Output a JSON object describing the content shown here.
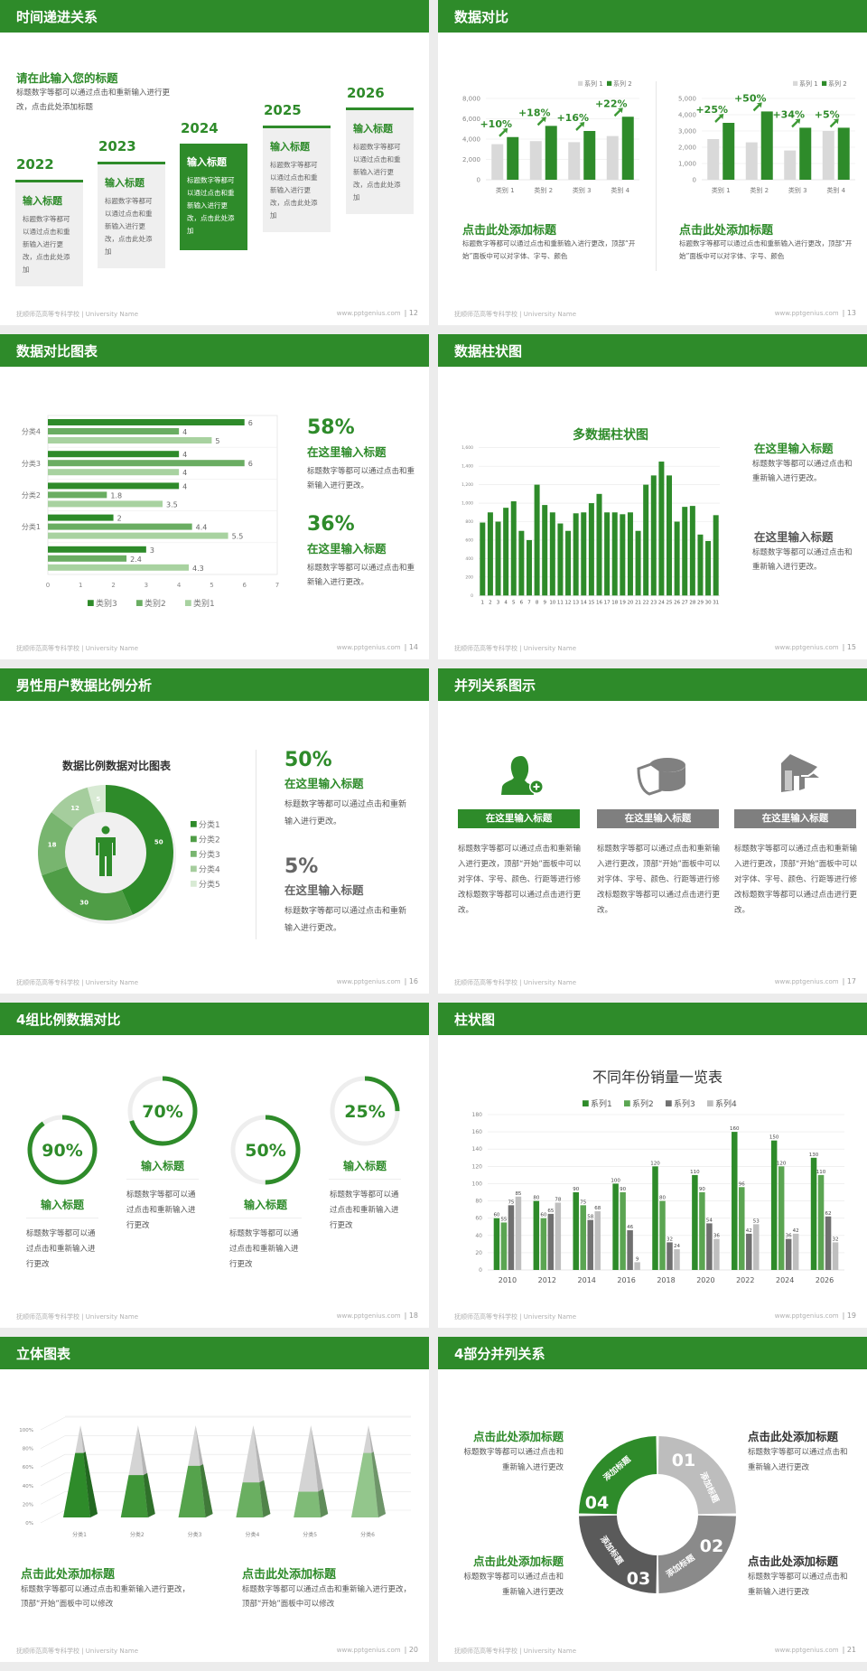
{
  "theme": {
    "accent": "#2e8b2a",
    "background": "#ececec"
  },
  "footer": {
    "school": "抚顺师范高等专科学校 | University Name",
    "site": "www.pptgenius.com"
  },
  "slides": [
    {
      "title": "时间递进关系",
      "page": "12",
      "subtitle": "请在此输入您的标题",
      "desc": "标题数字等都可以通过点击和重新输入进行更改，点击此处添加标题",
      "highlighted": "2024",
      "steps": [
        {
          "year": "2022",
          "title": "输入标题",
          "text": "标题数字等都可以通过点击和重新输入进行更改，点击此处添加"
        },
        {
          "year": "2023",
          "title": "输入标题",
          "text": "标题数字等都可以通过点击和重新输入进行更改，点击此处添加"
        },
        {
          "year": "2024",
          "title": "输入标题",
          "text": "标题数字等都可以通过点击和重新输入进行更改，点击此处添加"
        },
        {
          "year": "2025",
          "title": "输入标题",
          "text": "标题数字等都可以通过点击和重新输入进行更改，点击此处添加"
        },
        {
          "year": "2026",
          "title": "输入标题",
          "text": "标题数字等都可以通过点击和重新输入进行更改，点击此处添加"
        }
      ]
    },
    {
      "title": "数据对比",
      "page": "13",
      "blocks": [
        {
          "title": "点击此处添加标题",
          "text": "标题数字等都可以通过点击和重新输入进行更改，顶部“开始”面板中可以对字体、字号、颜色"
        },
        {
          "title": "点击此处添加标题",
          "text": "标题数字等都可以通过点击和重新输入进行更改，顶部“开始”面板中可以对字体、字号、颜色"
        }
      ]
    },
    {
      "title": "数据对比图表",
      "page": "14",
      "stats": [
        {
          "value": "58%",
          "title": "在这里输入标题",
          "text": "标题数字等都可以通过点击和重新输入进行更改。"
        },
        {
          "value": "36%",
          "title": "在这里输入标题",
          "text": "标题数字等都可以通过点击和重新输入进行更改。"
        }
      ]
    },
    {
      "title": "数据柱状图",
      "page": "15",
      "items": [
        {
          "title": "在这里输入标题",
          "text": "标题数字等都可以通过点击和重新输入进行更改。",
          "color": "#2e8b2a"
        },
        {
          "title": "在这里输入标题",
          "text": "标题数字等都可以通过点击和重新输入进行更改。",
          "color": "#555555"
        }
      ]
    },
    {
      "title": "男性用户数据比例分析",
      "page": "16",
      "stats": [
        {
          "value": "50%",
          "title": "在这里输入标题",
          "text": "标题数字等都可以通过点击和重新输入进行更改。",
          "color": "#2e8b2a"
        },
        {
          "value": "5%",
          "title": "在这里输入标题",
          "text": "标题数字等都可以通过点击和重新输入进行更改。",
          "color": "#666666"
        }
      ]
    },
    {
      "title": "并列关系图示",
      "page": "17",
      "columns": [
        {
          "icon": "female-user-add-icon",
          "label": "在这里输入标题",
          "color": "#2e8b2a",
          "text": "标题数字等都可以通过点击和重新输入进行更改，顶部“开始”面板中可以对字体、字号、颜色、行距等进行修改标题数字等都可以通过点击进行更改。"
        },
        {
          "icon": "pie-chart-icon",
          "label": "在这里输入标题",
          "color": "#7f7f7f",
          "text": "标题数字等都可以通过点击和重新输入进行更改，顶部“开始”面板中可以对字体、字号、颜色、行距等进行修改标题数字等都可以通过点击进行更改。"
        },
        {
          "icon": "store-icon",
          "label": "在这里输入标题",
          "color": "#7f7f7f",
          "text": "标题数字等都可以通过点击和重新输入进行更改，顶部“开始”面板中可以对字体、字号、颜色、行距等进行修改标题数字等都可以通过点击进行更改。"
        }
      ]
    },
    {
      "title": "4组比例数据对比",
      "page": "18",
      "rings": [
        {
          "percent": 90,
          "label": "90%",
          "title": "输入标题",
          "text": "标题数字等都可以通过点击和重新输入进行更改"
        },
        {
          "percent": 70,
          "label": "70%",
          "title": "输入标题",
          "text": "标题数字等都可以通过点击和重新输入进行更改"
        },
        {
          "percent": 50,
          "label": "50%",
          "title": "输入标题",
          "text": "标题数字等都可以通过点击和重新输入进行更改"
        },
        {
          "percent": 25,
          "label": "25%",
          "title": "输入标题",
          "text": "标题数字等都可以通过点击和重新输入进行更改"
        }
      ]
    },
    {
      "title": "柱状图",
      "page": "19"
    },
    {
      "title": "立体图表",
      "page": "20",
      "blocks": [
        {
          "title": "点击此处添加标题",
          "text": "标题数字等都可以通过点击和重新输入进行更改，顶部“开始”面板中可以修改"
        },
        {
          "title": "点击此处添加标题",
          "text": "标题数字等都可以通过点击和重新输入进行更改，顶部“开始”面板中可以修改"
        }
      ]
    },
    {
      "title": "4部分并列关系",
      "page": "21",
      "segments": [
        {
          "number": "01",
          "label": "添加标题",
          "color": "#bdbdbd"
        },
        {
          "number": "02",
          "label": "添加标题",
          "color": "#8a8a8a"
        },
        {
          "number": "03",
          "label": "添加标题",
          "color": "#5a5a5a"
        },
        {
          "number": "04",
          "label": "添加标题",
          "color": "#2e8b2a"
        }
      ],
      "blocks": [
        {
          "title": "点击此处添加标题",
          "text": "标题数字等都可以通过点击和重新输入进行更改",
          "color": "#2e8b2a"
        },
        {
          "title": "点击此处添加标题",
          "text": "标题数字等都可以通过点击和重新输入进行更改",
          "color": "#333333"
        },
        {
          "title": "点击此处添加标题",
          "text": "标题数字等都可以通过点击和重新输入进行更改",
          "color": "#2e8b2a"
        },
        {
          "title": "点击此处添加标题",
          "text": "标题数字等都可以通过点击和重新输入进行更改",
          "color": "#333333"
        }
      ]
    }
  ],
  "chart_data": [
    {
      "type": "bar",
      "categories": [
        "类别 1",
        "类别 2",
        "类别 3",
        "类别 4"
      ],
      "series": [
        {
          "name": "系列 1",
          "values": [
            3500,
            3800,
            3700,
            4300
          ]
        },
        {
          "name": "系列 2",
          "values": [
            4200,
            5300,
            4800,
            6200
          ]
        }
      ],
      "annotations": [
        "+10%",
        "+18%",
        "+16%",
        "+22%"
      ],
      "ylim": [
        0,
        8000
      ],
      "yticks": [
        "0",
        "2,000",
        "4,000",
        "6,000",
        "8,000"
      ],
      "legend": "top-right",
      "grid": true,
      "colors": [
        "#d9d9d9",
        "#2e8b2a"
      ]
    },
    {
      "type": "bar",
      "categories": [
        "类别 1",
        "类别 2",
        "类别 3",
        "类别 4"
      ],
      "series": [
        {
          "name": "系列 1",
          "values": [
            2500,
            2300,
            1800,
            3000
          ]
        },
        {
          "name": "系列 2",
          "values": [
            3500,
            4200,
            3200,
            3200
          ]
        }
      ],
      "annotations": [
        "+25%",
        "+50%",
        "+34%",
        "+5%"
      ],
      "ylim": [
        0,
        5000
      ],
      "yticks": [
        "0",
        "1,000",
        "2,000",
        "3,000",
        "4,000",
        "5,000"
      ],
      "legend": "top-right",
      "grid": true,
      "colors": [
        "#d9d9d9",
        "#2e8b2a"
      ]
    },
    {
      "type": "bar",
      "orientation": "horizontal",
      "categories": [
        "分类4",
        "分类3",
        "分类2",
        "分类1",
        ""
      ],
      "series": [
        {
          "name": "类别3",
          "values": [
            6,
            4,
            4,
            2,
            3
          ]
        },
        {
          "name": "类别2",
          "values": [
            4,
            6,
            1.8,
            4.4,
            2.4
          ]
        },
        {
          "name": "类别1",
          "values": [
            5,
            4,
            3.5,
            5.5,
            4.3
          ]
        }
      ],
      "xlim": [
        0,
        7
      ],
      "xticks": [
        "0",
        "1",
        "2",
        "3",
        "4",
        "5",
        "6",
        "7"
      ],
      "legend": "bottom",
      "colors": [
        "#2e8b2a",
        "#6aad62",
        "#a8d2a0"
      ]
    },
    {
      "type": "bar",
      "title": "多数据柱状图",
      "categories": [
        "1",
        "2",
        "3",
        "4",
        "5",
        "6",
        "7",
        "8",
        "9",
        "10",
        "11",
        "12",
        "13",
        "14",
        "15",
        "16",
        "17",
        "18",
        "19",
        "20",
        "21",
        "22",
        "23",
        "24",
        "25",
        "26",
        "27",
        "28",
        "29",
        "30",
        "31"
      ],
      "values": [
        790,
        900,
        800,
        950,
        1020,
        700,
        600,
        1200,
        980,
        900,
        780,
        700,
        890,
        900,
        1000,
        1100,
        900,
        900,
        880,
        900,
        700,
        1200,
        1300,
        1450,
        1300,
        800,
        960,
        970,
        660,
        590,
        870
      ],
      "ylim": [
        0,
        1600
      ],
      "yticks": [
        "0",
        "200",
        "400",
        "600",
        "800",
        "1,000",
        "1,200",
        "1,400",
        "1,600"
      ],
      "grid": true,
      "colors": [
        "#2e8b2a"
      ]
    },
    {
      "type": "pie",
      "donut": true,
      "title": "数据比例数据对比图表",
      "categories": [
        "分类1",
        "分类2",
        "分类3",
        "分类4",
        "分类5"
      ],
      "values": [
        50,
        30,
        18,
        12,
        5
      ],
      "legend": "right",
      "colors": [
        "#2e8b2a",
        "#4f9d46",
        "#78b56f",
        "#a5cd9d",
        "#d8ead4"
      ]
    },
    {
      "type": "bar",
      "title": "不同年份销量一览表",
      "categories": [
        "2010",
        "2012",
        "2014",
        "2016",
        "2018",
        "2020",
        "2022",
        "2024",
        "2026"
      ],
      "series": [
        {
          "name": "系列1",
          "values": [
            60,
            80,
            90,
            100,
            120,
            110,
            160,
            150,
            130
          ]
        },
        {
          "name": "系列2",
          "values": [
            55,
            60,
            75,
            90,
            80,
            90,
            96,
            120,
            110
          ]
        },
        {
          "name": "系列3",
          "values": [
            75,
            65,
            58,
            46,
            32,
            54,
            42,
            36,
            62
          ]
        },
        {
          "name": "系列4",
          "values": [
            85,
            78,
            68,
            9,
            24,
            36,
            53,
            42,
            32
          ]
        }
      ],
      "ylim": [
        0,
        180
      ],
      "yticks": [
        "0",
        "20",
        "40",
        "60",
        "80",
        "100",
        "120",
        "140",
        "160",
        "180"
      ],
      "legend": "top",
      "grid": true,
      "colors": [
        "#2e8b2a",
        "#5ba552",
        "#707070",
        "#bfbfbf"
      ]
    },
    {
      "type": "bar",
      "style": "3d-pyramid-100%",
      "categories": [
        "分类1",
        "分类2",
        "分类3",
        "分类4",
        "分类5",
        "分类6"
      ],
      "values": [
        70,
        46,
        56,
        38,
        28,
        70
      ],
      "ylim": [
        0,
        100
      ],
      "yticks": [
        "0%",
        "20%",
        "40%",
        "60%",
        "80%",
        "100%"
      ],
      "grid": true,
      "colors": [
        "#2e8b2a",
        "#3f9638",
        "#55a34c",
        "#6aaf61",
        "#7fbb77",
        "#93c68c"
      ]
    }
  ]
}
